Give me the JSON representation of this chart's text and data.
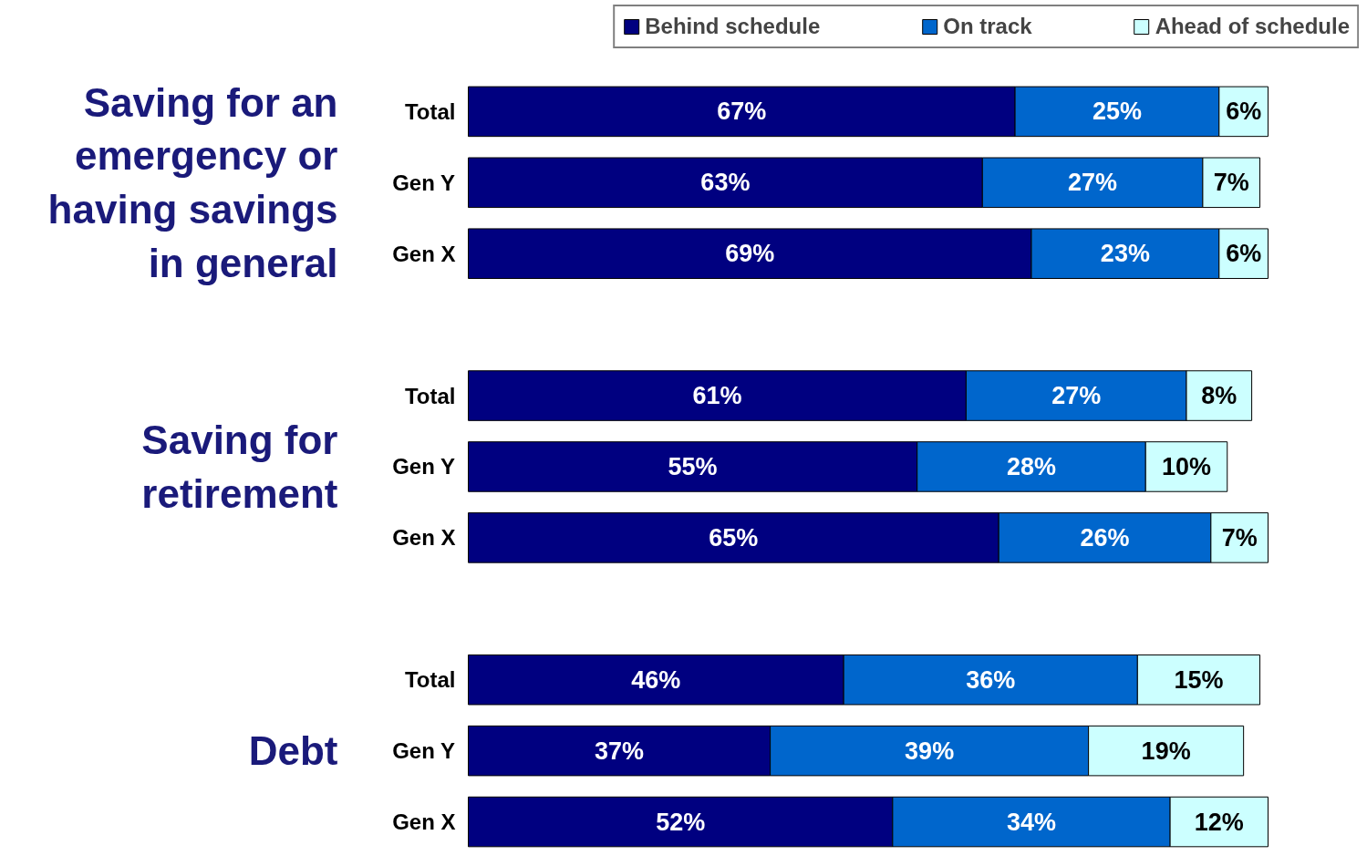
{
  "chart_data": {
    "type": "bar",
    "orientation": "horizontal",
    "stacked": true,
    "legend": "top",
    "categories": [
      "Total",
      "Gen Y",
      "Gen X",
      "Total",
      "Gen Y",
      "Gen X",
      "Total",
      "Gen Y",
      "Gen X"
    ],
    "annotations": [
      "Saving for an emergency or having savings in general",
      "Saving for retirement",
      "Debt"
    ],
    "series": [
      {
        "name": "Behind schedule",
        "color": "#000080",
        "values": [
          67,
          63,
          69,
          61,
          55,
          65,
          46,
          37,
          52
        ],
        "value_labels": [
          "67%",
          "63%",
          "69%",
          "61%",
          "55%",
          "65%",
          "46%",
          "37%",
          "52%"
        ]
      },
      {
        "name": "On track",
        "color": "#0066cc",
        "values": [
          25,
          27,
          23,
          27,
          28,
          26,
          36,
          39,
          34
        ],
        "value_labels": [
          "25%",
          "27%",
          "23%",
          "27%",
          "28%",
          "26%",
          "36%",
          "39%",
          "34%"
        ]
      },
      {
        "name": "Ahead of schedule",
        "color": "#ccffff",
        "values": [
          6,
          7,
          6,
          8,
          10,
          7,
          15,
          19,
          12
        ],
        "value_labels": [
          "6%",
          "7%",
          "6%",
          "8%",
          "10%",
          "7%",
          "15%",
          "19%",
          "12%"
        ]
      }
    ]
  }
}
